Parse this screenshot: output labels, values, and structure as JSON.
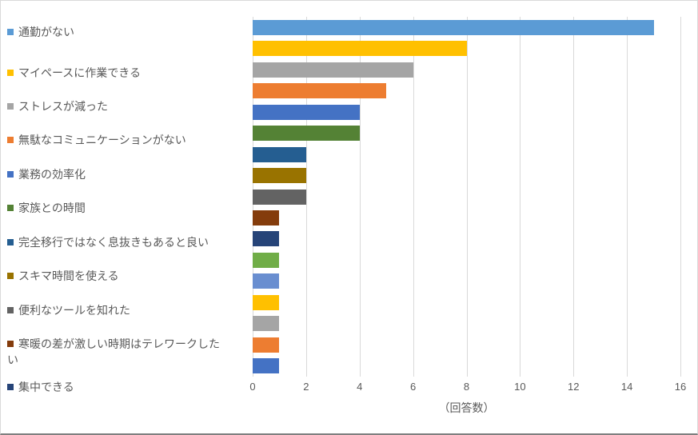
{
  "chart_data": {
    "type": "bar",
    "orientation": "horizontal",
    "title": "",
    "xlabel": "（回答数）",
    "ylabel": "",
    "xlim": [
      0,
      16
    ],
    "xticks": [
      "0",
      "2",
      "4",
      "6",
      "8",
      "10",
      "12",
      "14",
      "16"
    ],
    "grid": true,
    "legend_position": "left",
    "axis_text_color": "#595959",
    "gridline_color": "#d9d9d9",
    "series": [
      {
        "name": "通勤がない",
        "value": 15,
        "color": "#5B9BD5"
      },
      {
        "name": "マイペースに作業できる",
        "value": 8,
        "color": "#FFC000"
      },
      {
        "name": "ストレスが減った",
        "value": 6,
        "color": "#A5A5A5"
      },
      {
        "name": "無駄なコミュニケーションがない",
        "value": 5,
        "color": "#ED7D31"
      },
      {
        "name": "業務の効率化",
        "value": 4,
        "color": "#4472C4"
      },
      {
        "name": "家族との時間",
        "value": 4,
        "color": "#548235"
      },
      {
        "name": "完全移行ではなく息抜きもあると良い",
        "value": 2,
        "color": "#255E91"
      },
      {
        "name": "スキマ時間を使える",
        "value": 2,
        "color": "#997300"
      },
      {
        "name": "便利なツールを知れた",
        "value": 2,
        "color": "#636363"
      },
      {
        "name": "寒暖の差が激しい時期はテレワークしたい",
        "value": 1,
        "color": "#843C0C"
      },
      {
        "name": "集中できる",
        "value": 1,
        "color": "#264478"
      },
      {
        "name": "",
        "value": 1,
        "color": "#70AD47"
      },
      {
        "name": "",
        "value": 1,
        "color": "#698ED0"
      },
      {
        "name": "",
        "value": 1,
        "color": "#FFC000"
      },
      {
        "name": "",
        "value": 1,
        "color": "#A5A5A5"
      },
      {
        "name": "",
        "value": 1,
        "color": "#ED7D31"
      },
      {
        "name": "",
        "value": 1,
        "color": "#4472C4"
      }
    ]
  }
}
